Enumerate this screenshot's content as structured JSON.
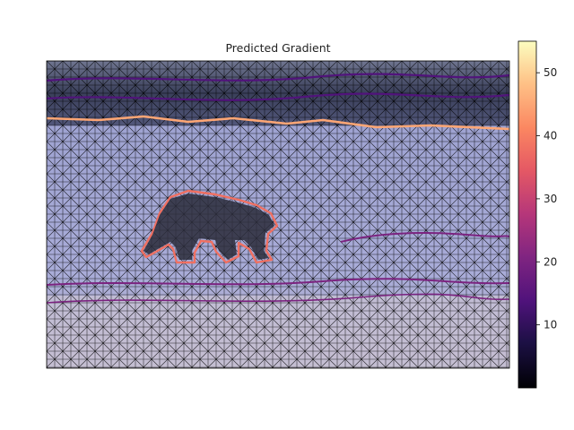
{
  "chart_data": {
    "type": "heatmap",
    "title": "Predicted Gradient",
    "xlabel": "",
    "ylabel": "",
    "grid": false,
    "colormap": "magma",
    "colorbar": {
      "vmin": 0,
      "vmax": 55,
      "ticks": [
        10,
        20,
        30,
        40,
        50
      ],
      "tick_labels": [
        "10",
        "20",
        "30",
        "40",
        "50"
      ],
      "placement": "right"
    },
    "overlay": "triangular mesh over photo of a bear walking on snow",
    "gradient_levels": {
      "mesh_background": 5,
      "dark_water_band": 14,
      "shoreline_edge": 45,
      "bear_outline": 38,
      "snow_ridge": 20
    }
  }
}
